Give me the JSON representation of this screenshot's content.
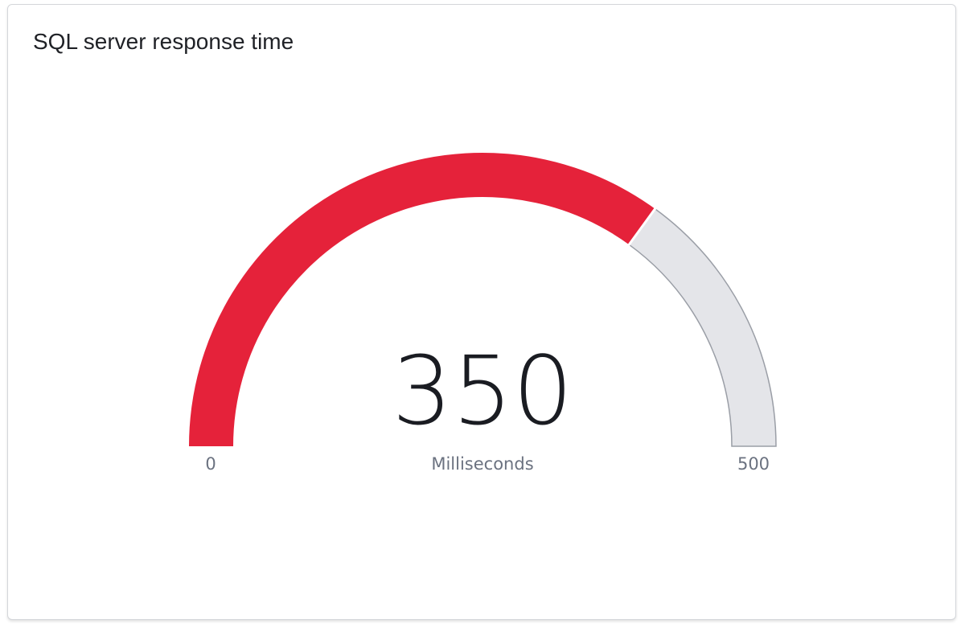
{
  "chart_data": {
    "type": "gauge",
    "title": "SQL server response time",
    "value": 350,
    "value_label": "350",
    "unit": "Milliseconds",
    "min": 0,
    "max": 500,
    "min_label": "0",
    "max_label": "500",
    "colors": {
      "fill": "#e5223a",
      "track": "#e4e5e9",
      "track_border": "#9a9ea6"
    }
  }
}
